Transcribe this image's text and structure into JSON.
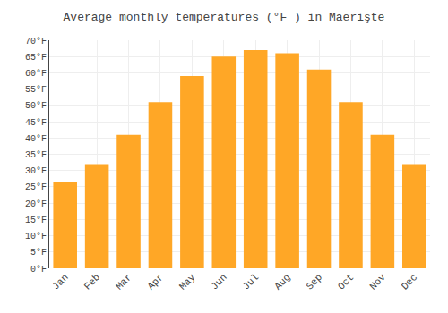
{
  "chart_data": {
    "type": "bar",
    "title": "Average monthly temperatures (°F ) in Măerişte",
    "categories": [
      "Jan",
      "Feb",
      "Mar",
      "Apr",
      "May",
      "Jun",
      "Jul",
      "Aug",
      "Sep",
      "Oct",
      "Nov",
      "Dec"
    ],
    "values": [
      26.5,
      32.0,
      41.0,
      51.0,
      59.0,
      65.0,
      67.0,
      66.0,
      61.0,
      51.0,
      41.0,
      32.0
    ],
    "color": "#FFA726",
    "ylim": [
      0,
      70
    ],
    "yticks": [
      {
        "value": 0,
        "label": "0°F"
      },
      {
        "value": 5,
        "label": "5°F"
      },
      {
        "value": 10,
        "label": "10°F"
      },
      {
        "value": 15,
        "label": "15°F"
      },
      {
        "value": 20,
        "label": "20°F"
      },
      {
        "value": 25,
        "label": "25°F"
      },
      {
        "value": 30,
        "label": "30°F"
      },
      {
        "value": 35,
        "label": "35°F"
      },
      {
        "value": 40,
        "label": "40°F"
      },
      {
        "value": 45,
        "label": "45°F"
      },
      {
        "value": 50,
        "label": "50°F"
      },
      {
        "value": 55,
        "label": "55°F"
      },
      {
        "value": 60,
        "label": "60°F"
      },
      {
        "value": 65,
        "label": "65°F"
      },
      {
        "value": 70,
        "label": "70°F"
      }
    ],
    "grid": true
  }
}
